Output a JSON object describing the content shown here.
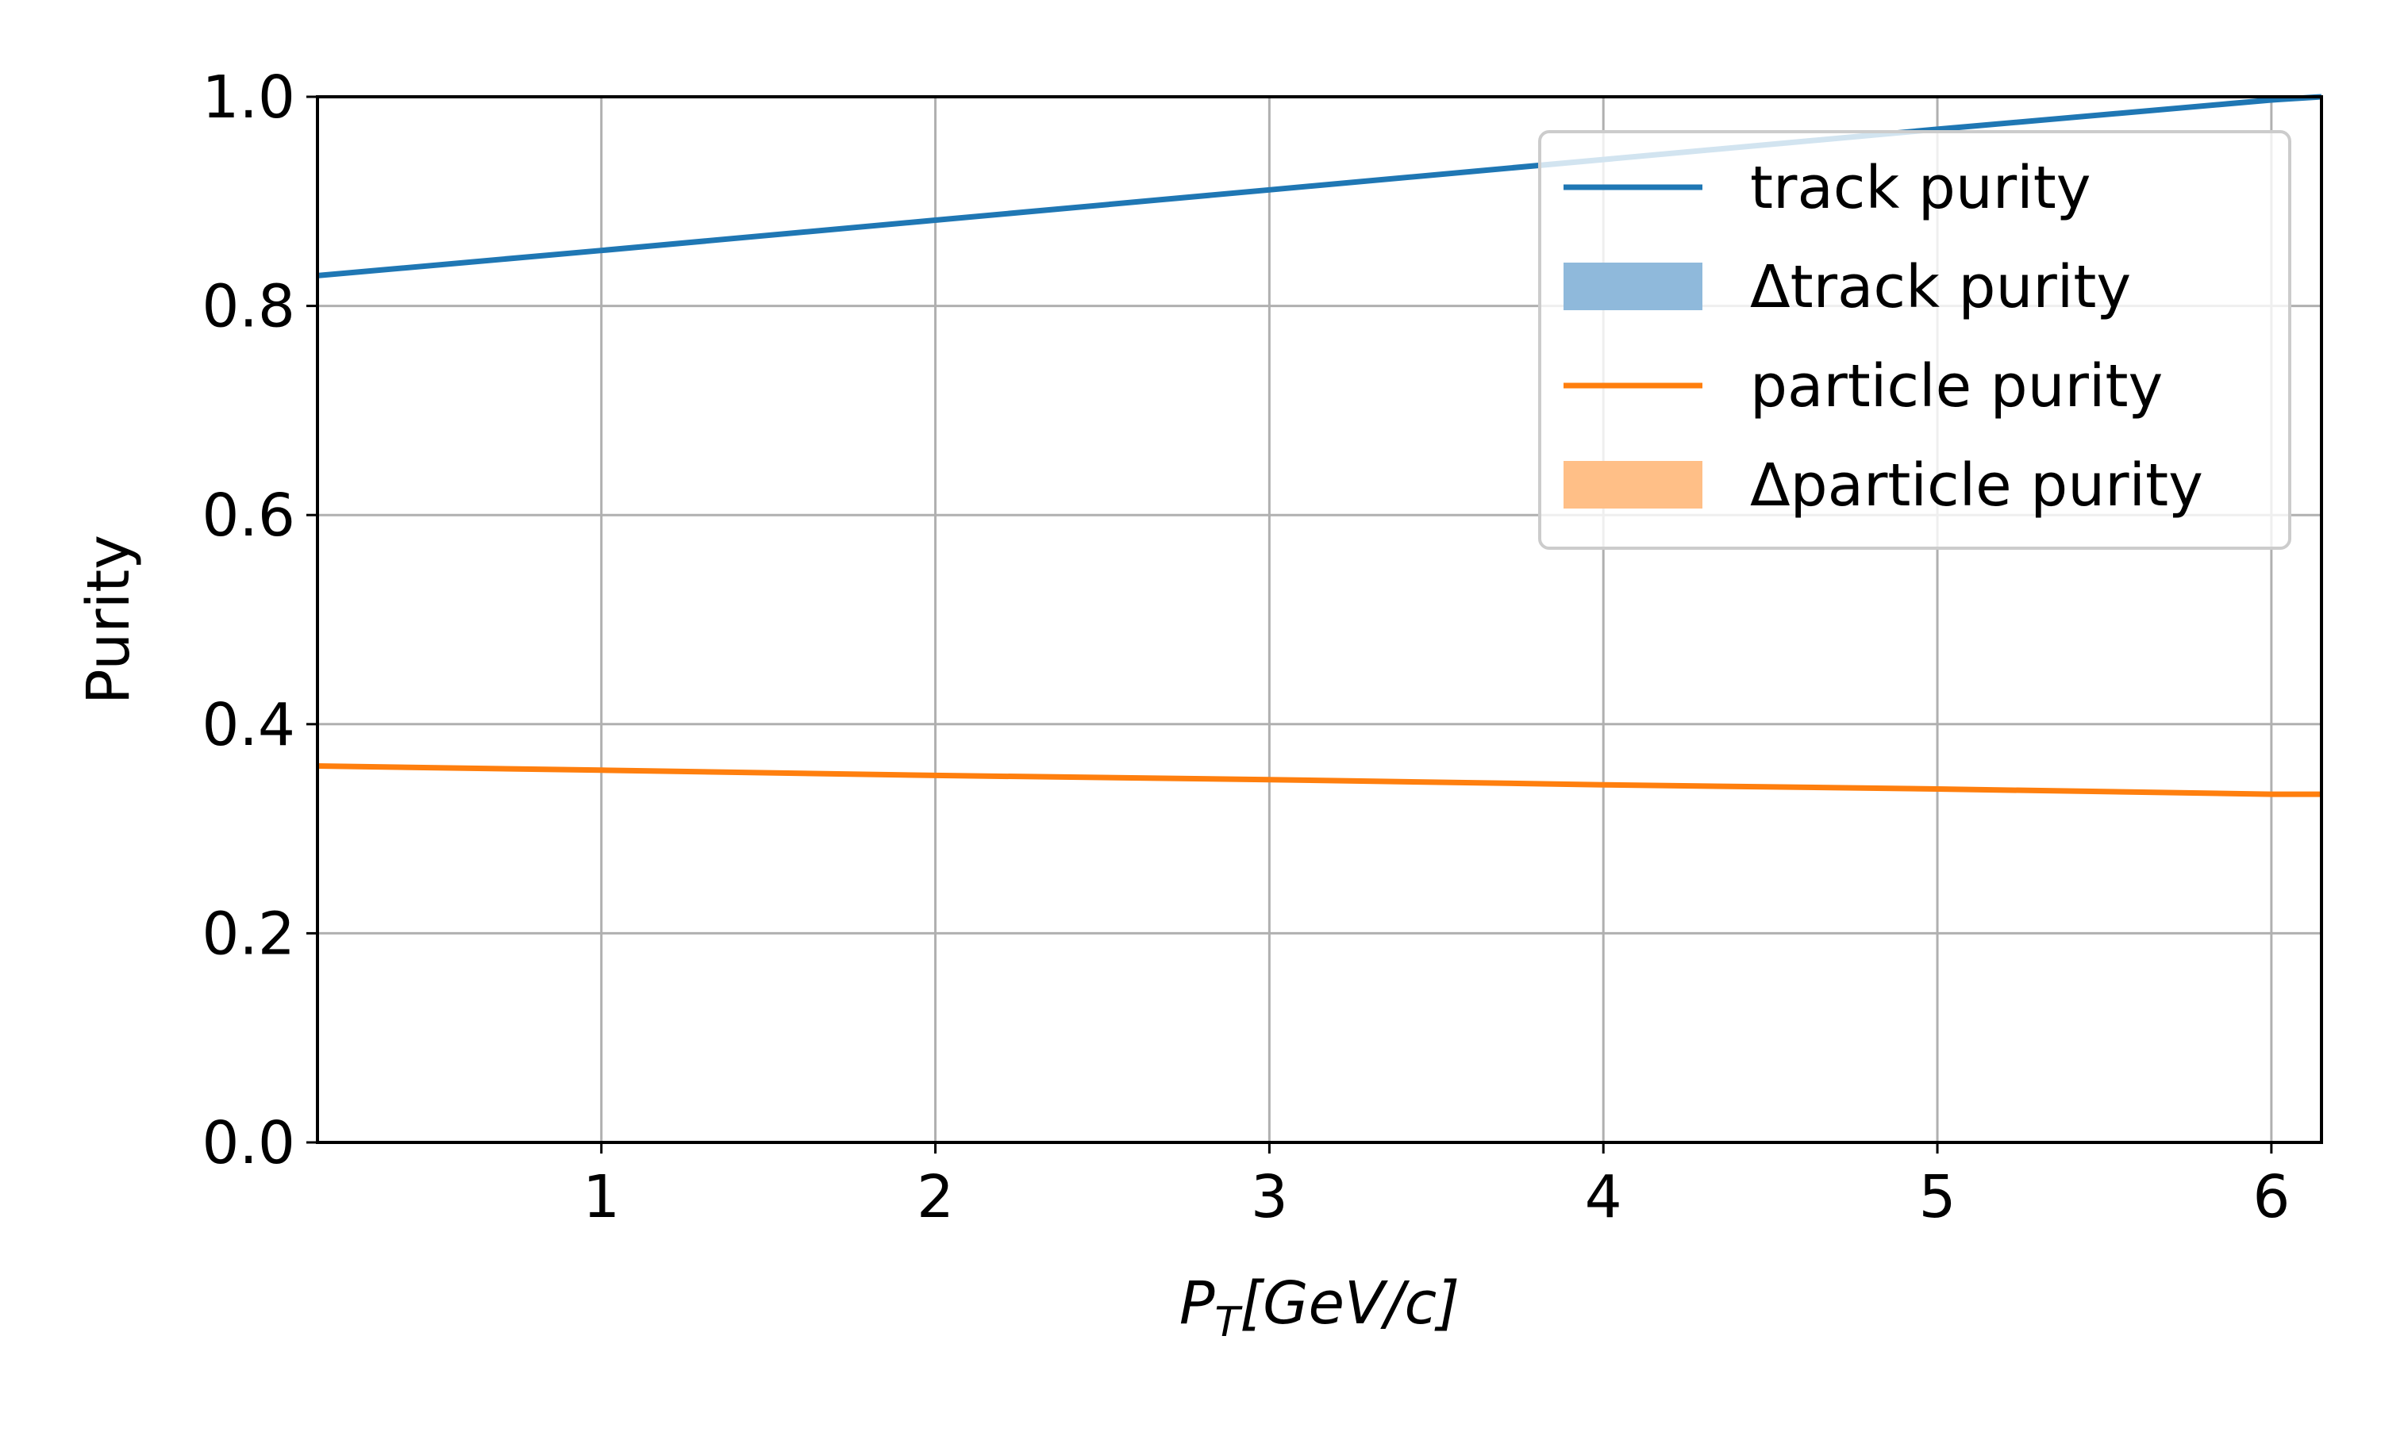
{
  "chart_data": {
    "type": "line",
    "xlabel": "P_T[GeV/c]",
    "xlabel_parts": {
      "main": "P",
      "sub": "T",
      "rest": "[GeV/c]"
    },
    "ylabel": "Purity",
    "xlim": [
      0.15,
      6.15
    ],
    "ylim": [
      0.0,
      1.0
    ],
    "xticks": [
      1,
      2,
      3,
      4,
      5,
      6
    ],
    "xtick_labels": [
      "1",
      "2",
      "3",
      "4",
      "5",
      "6"
    ],
    "yticks": [
      0.0,
      0.2,
      0.4,
      0.6,
      0.8,
      1.0
    ],
    "ytick_labels": [
      "0.0",
      "0.2",
      "0.4",
      "0.6",
      "0.8",
      "1.0"
    ],
    "grid": true,
    "legend_position": "top-right",
    "series": [
      {
        "name": "track purity",
        "color": "#1f77b4",
        "x": [
          0.15,
          1,
          2,
          3,
          4,
          5,
          6,
          6.15
        ],
        "y": [
          0.829,
          0.853,
          0.882,
          0.911,
          0.94,
          0.969,
          0.997,
          1.0
        ]
      },
      {
        "name": "particle purity",
        "color": "#ff7f0e",
        "x": [
          0.15,
          1,
          2,
          3,
          4,
          5,
          6,
          6.15
        ],
        "y": [
          0.36,
          0.356,
          0.351,
          0.347,
          0.342,
          0.338,
          0.333,
          0.333
        ]
      }
    ],
    "legend": [
      {
        "label": "track purity",
        "kind": "line",
        "color": "#1f77b4"
      },
      {
        "label": "Δtrack purity",
        "kind": "patch",
        "color": "#8fb9db"
      },
      {
        "label": "particle purity",
        "kind": "line",
        "color": "#ff7f0e"
      },
      {
        "label": "Δparticle purity",
        "kind": "patch",
        "color": "#ffbf87"
      }
    ]
  }
}
